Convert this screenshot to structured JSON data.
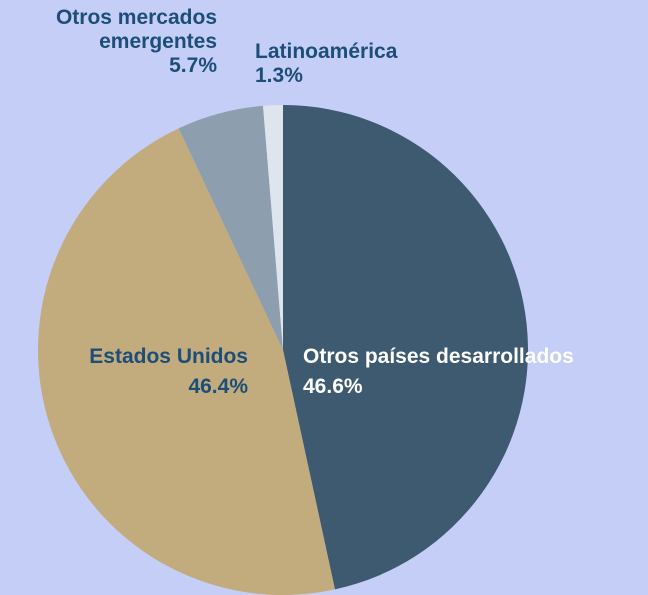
{
  "chart_data": {
    "type": "pie",
    "categories": [
      "Otros países desarrollados",
      "Estados Unidos",
      "Otros mercados emergentes",
      "Latinoamérica"
    ],
    "values": [
      46.6,
      46.4,
      5.7,
      1.3
    ],
    "value_labels": [
      "46.6%",
      "46.4%",
      "5.7%",
      "1.3%"
    ],
    "colors": [
      "#3d5a70",
      "#c2ab7c",
      "#8d9eae",
      "#dfe5ec"
    ]
  }
}
